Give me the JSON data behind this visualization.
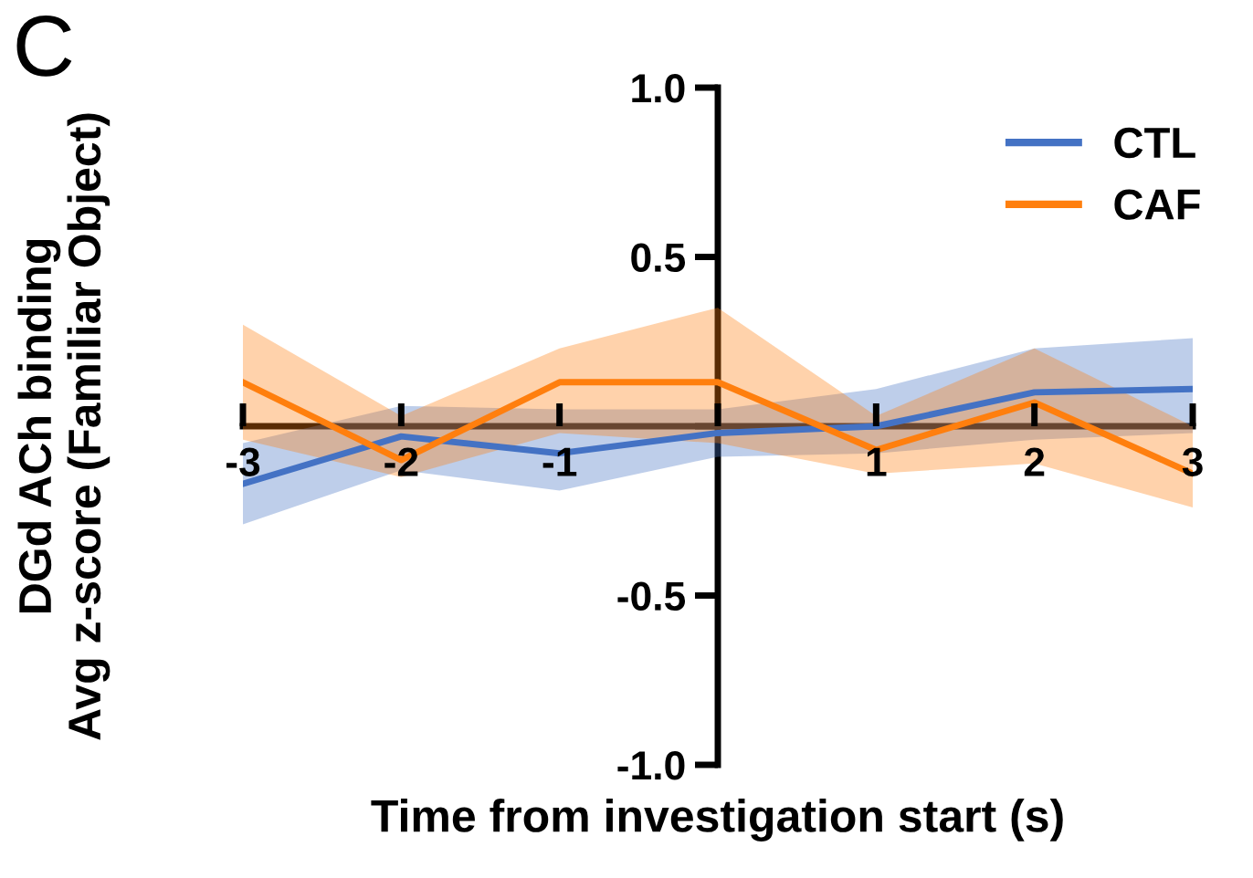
{
  "chart_data": {
    "type": "line",
    "xlabel": "Time from investigation start (s)",
    "ylabel": "DGd ACh binding\nAvg z-score (Familiar Object)",
    "annotations": [
      "C"
    ],
    "x": [
      -3,
      -2,
      -1,
      0,
      1,
      2,
      3
    ],
    "series": [
      {
        "name": "CTL",
        "color": "#4472c4",
        "values": [
          -0.17,
          -0.03,
          -0.08,
          -0.02,
          0.0,
          0.1,
          0.11
        ],
        "lower": [
          -0.29,
          -0.13,
          -0.19,
          -0.09,
          -0.08,
          -0.04,
          -0.02
        ],
        "upper": [
          -0.05,
          0.06,
          0.05,
          0.05,
          0.11,
          0.23,
          0.26
        ]
      },
      {
        "name": "CAF",
        "color": "#ff7f0e",
        "values": [
          0.13,
          -0.1,
          0.13,
          0.13,
          -0.07,
          0.07,
          -0.14
        ],
        "lower": [
          -0.04,
          -0.15,
          -0.02,
          -0.05,
          -0.14,
          -0.11,
          -0.24
        ],
        "upper": [
          0.3,
          0.03,
          0.23,
          0.35,
          0.03,
          0.23,
          0.0
        ]
      }
    ],
    "xlim": [
      -3,
      3
    ],
    "ylim": [
      -1,
      1
    ],
    "xticks": [
      -3,
      -2,
      -1,
      {
        "value": 0,
        "label": null
      },
      1,
      2,
      3
    ],
    "yticks": [
      {
        "value": -1,
        "label": "-1.0"
      },
      {
        "value": -0.5,
        "label": "-0.5"
      },
      {
        "value": 0,
        "label": null
      },
      {
        "value": 0.5,
        "label": "0.5"
      },
      {
        "value": 1,
        "label": "1.0"
      }
    ],
    "grid": false,
    "legend": "top right",
    "marker": "none",
    "line_style": "solid"
  }
}
